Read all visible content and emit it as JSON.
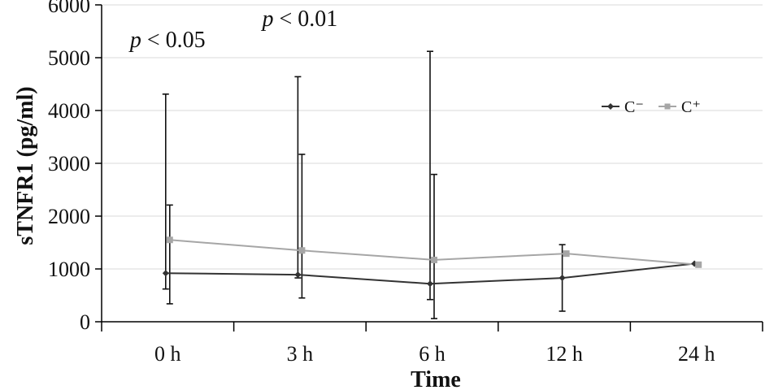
{
  "chart_data": {
    "type": "line",
    "title": "",
    "xlabel": "Time",
    "ylabel": "sTNFR1 (pg/ml)",
    "categories": [
      "0 h",
      "3 h",
      "6 h",
      "12 h",
      "24 h"
    ],
    "ylim": [
      0,
      6000
    ],
    "yticks": [
      0,
      1000,
      2000,
      3000,
      4000,
      5000,
      6000
    ],
    "grid": true,
    "legend_position": "top-right",
    "series": [
      {
        "name": "C⁻",
        "color": "#333333",
        "marker": "diamond",
        "values": [
          920,
          890,
          720,
          830,
          1100
        ],
        "err_low": [
          620,
          830,
          420,
          200,
          1100
        ],
        "err_high": [
          4310,
          4640,
          5120,
          1460,
          1100
        ]
      },
      {
        "name": "C⁺",
        "color": "#a6a6a6",
        "marker": "square",
        "values": [
          1550,
          1350,
          1170,
          1290,
          1080
        ],
        "err_low": [
          340,
          450,
          60,
          1290,
          1080
        ],
        "err_high": [
          2210,
          3170,
          2790,
          1290,
          1080
        ]
      }
    ],
    "annotations": [
      {
        "prefix": "p",
        "text": " < 0.05",
        "category": "0 h",
        "y": 5200
      },
      {
        "prefix": "p",
        "text": " < 0.01",
        "category": "3 h",
        "y": 5600
      }
    ]
  }
}
